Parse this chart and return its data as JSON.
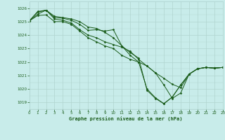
{
  "title": "Graphe pression niveau de la mer (hPa)",
  "background_color": "#c8ecea",
  "grid_color": "#b0d4d0",
  "line_color": "#1a5c1a",
  "text_color": "#1a5c1a",
  "xlim": [
    0,
    23
  ],
  "ylim": [
    1018.5,
    1026.5
  ],
  "yticks": [
    1019,
    1020,
    1021,
    1022,
    1023,
    1024,
    1025,
    1026
  ],
  "xticks": [
    0,
    1,
    2,
    3,
    4,
    5,
    6,
    7,
    8,
    9,
    10,
    11,
    12,
    13,
    14,
    15,
    16,
    17,
    18,
    19,
    20,
    21,
    22,
    23
  ],
  "series": [
    {
      "x": [
        0,
        1,
        2,
        3,
        4,
        5,
        6,
        7,
        8,
        9,
        10,
        11,
        12,
        13,
        14,
        15,
        16,
        17,
        18,
        19,
        20,
        21,
        22,
        23
      ],
      "y": [
        1025.05,
        1025.7,
        1025.85,
        1025.3,
        1025.25,
        1025.1,
        1024.8,
        1024.35,
        1024.4,
        1024.3,
        1024.4,
        1023.2,
        1022.7,
        1022.3,
        1019.9,
        1019.3,
        1018.9,
        1019.4,
        1020.3,
        1021.1,
        1021.5,
        1021.6,
        1021.55,
        1021.6
      ]
    },
    {
      "x": [
        0,
        1,
        2,
        3,
        4,
        5,
        6,
        7,
        8,
        9,
        10,
        11,
        12,
        13,
        14,
        15,
        16,
        17,
        18,
        19,
        20,
        21,
        22,
        23
      ],
      "y": [
        1025.05,
        1025.55,
        1025.85,
        1025.4,
        1025.3,
        1025.2,
        1025.0,
        1024.6,
        1024.5,
        1024.2,
        1023.8,
        1023.2,
        1022.5,
        1022.0,
        1021.7,
        1021.2,
        1020.3,
        1019.3,
        1019.7,
        1021.1,
        1021.5,
        1021.6,
        1021.55,
        1021.6
      ]
    },
    {
      "x": [
        0,
        1,
        2,
        3,
        4,
        5,
        6,
        7,
        8,
        9,
        10,
        11,
        12,
        13,
        14,
        15,
        16,
        17,
        18,
        19,
        20,
        21,
        22,
        23
      ],
      "y": [
        1025.05,
        1025.75,
        1025.85,
        1025.2,
        1025.1,
        1024.9,
        1024.4,
        1024.0,
        1023.8,
        1023.5,
        1023.3,
        1023.1,
        1022.8,
        1022.2,
        1021.7,
        1021.2,
        1020.8,
        1020.35,
        1020.1,
        1021.1,
        1021.5,
        1021.6,
        1021.55,
        1021.6
      ]
    },
    {
      "x": [
        0,
        1,
        2,
        3,
        4,
        5,
        6,
        7,
        8,
        9,
        10,
        11,
        12,
        13,
        14,
        15,
        16,
        17,
        18,
        19,
        20,
        21,
        22,
        23
      ],
      "y": [
        1025.05,
        1025.45,
        1025.5,
        1025.0,
        1025.0,
        1024.8,
        1024.3,
        1023.8,
        1023.5,
        1023.2,
        1023.0,
        1022.5,
        1022.2,
        1022.0,
        1020.0,
        1019.35,
        1018.92,
        1019.4,
        1020.3,
        1021.1,
        1021.5,
        1021.6,
        1021.55,
        1021.6
      ]
    }
  ]
}
